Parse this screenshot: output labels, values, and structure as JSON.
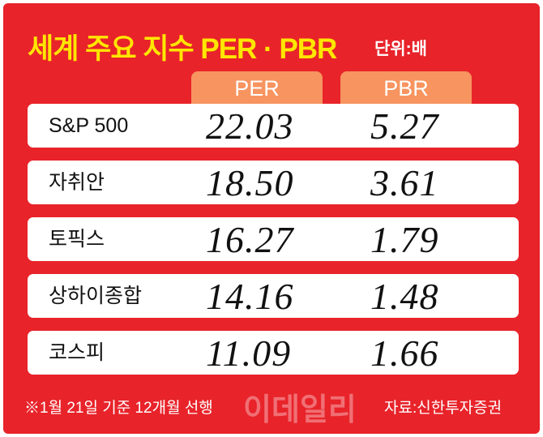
{
  "header": {
    "title": "세계 주요 지수 PER · PBR",
    "unit": "단위:배"
  },
  "columns": {
    "per": "PER",
    "pbr": "PBR"
  },
  "rows": [
    {
      "name": "S&P 500",
      "per": "22.03",
      "pbr": "5.27"
    },
    {
      "name": "자취안",
      "per": "18.50",
      "pbr": "3.61"
    },
    {
      "name": "토픽스",
      "per": "16.27",
      "pbr": "1.79"
    },
    {
      "name": "상하이종합",
      "per": "14.16",
      "pbr": "1.48"
    },
    {
      "name": "코스피",
      "per": "11.09",
      "pbr": "1.66"
    }
  ],
  "footer": {
    "note": "※1월 21일 기준 12개월 선행",
    "source": "자료:신한투자증권",
    "watermark": "이데일리"
  },
  "colors": {
    "background": "#e8232a",
    "title": "#ffe600",
    "column_header": "#f79460",
    "row": "#ffffff"
  }
}
